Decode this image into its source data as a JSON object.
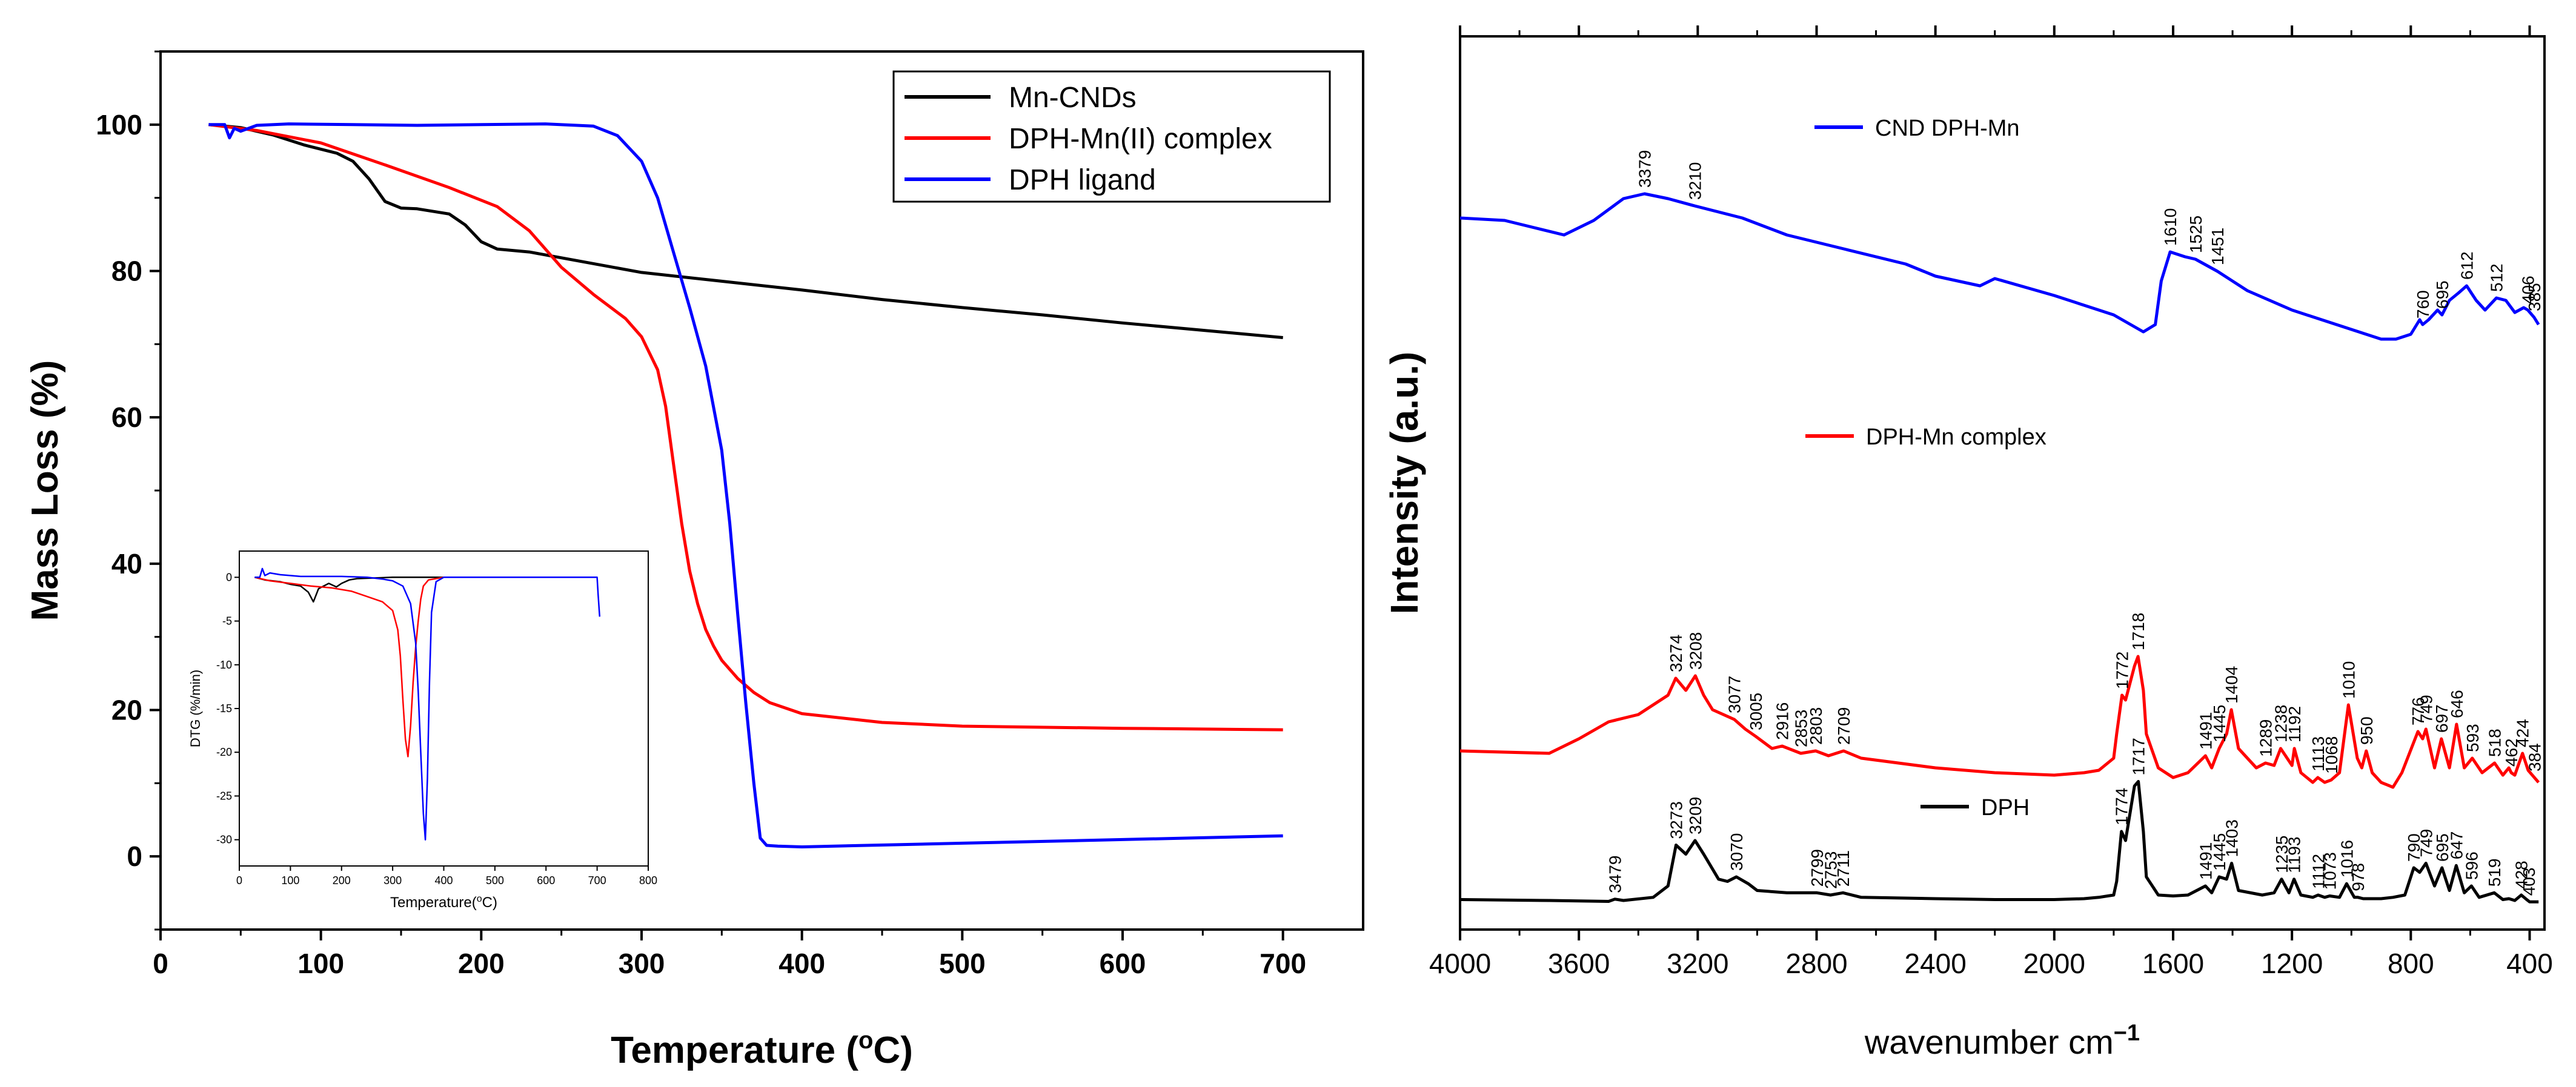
{
  "chart_data": [
    {
      "type": "line",
      "title": "",
      "xlabel": "Temperature (",
      "xlabel_sup": "o",
      "xlabel_end": "C)",
      "ylabel": "Mass Loss (%)",
      "xlim": [
        0,
        750
      ],
      "ylim": [
        -10,
        110
      ],
      "xticks": [
        0,
        100,
        200,
        300,
        400,
        500,
        600,
        700
      ],
      "yticks": [
        0,
        20,
        40,
        60,
        80,
        100
      ],
      "series": [
        {
          "name": "Mn-CNDs",
          "color": "#000000",
          "x": [
            30,
            50,
            70,
            90,
            110,
            120,
            130,
            140,
            150,
            160,
            180,
            190,
            200,
            210,
            230,
            260,
            300,
            350,
            400,
            450,
            500,
            550,
            600,
            650,
            700
          ],
          "y": [
            100,
            99.6,
            98.6,
            97.2,
            96.1,
            95.0,
            92.6,
            89.5,
            88.6,
            88.5,
            87.8,
            86.3,
            84.0,
            83.0,
            82.6,
            81.4,
            79.8,
            78.6,
            77.4,
            76.1,
            75.0,
            74.0,
            72.9,
            71.9,
            70.9
          ]
        },
        {
          "name": "DPH-Mn(II) complex",
          "color": "#ff0000",
          "x": [
            30,
            60,
            100,
            140,
            180,
            210,
            230,
            250,
            270,
            290,
            300,
            310,
            315,
            320,
            325,
            330,
            335,
            340,
            345,
            350,
            360,
            370,
            380,
            400,
            450,
            500,
            600,
            700
          ],
          "y": [
            100,
            99.2,
            97.5,
            94.5,
            91.4,
            88.8,
            85.5,
            80.5,
            76.8,
            73.5,
            71.0,
            66.5,
            61.5,
            53.5,
            45.5,
            39.0,
            34.5,
            31.0,
            28.7,
            26.8,
            24.3,
            22.4,
            21.0,
            19.5,
            18.3,
            17.8,
            17.5,
            17.3
          ]
        },
        {
          "name": "DPH ligand",
          "color": "#0000ff",
          "x": [
            30,
            40,
            43,
            46,
            50,
            60,
            80,
            120,
            160,
            200,
            240,
            270,
            285,
            300,
            310,
            320,
            330,
            340,
            350,
            355,
            360,
            365,
            370,
            374,
            378,
            385,
            400,
            500,
            600,
            700
          ],
          "y": [
            100,
            100,
            98.2,
            99.5,
            99.1,
            99.9,
            100.1,
            100,
            99.9,
            100,
            100.1,
            99.8,
            98.5,
            95.0,
            90.0,
            82.5,
            75.0,
            67.0,
            55.5,
            45.5,
            33.0,
            21.0,
            10.0,
            2.5,
            1.5,
            1.4,
            1.3,
            1.8,
            2.3,
            2.8
          ]
        }
      ],
      "legend": {
        "placement": "top-right",
        "labels": [
          "Mn-CNDs",
          "DPH-Mn(II) complex",
          "DPH ligand"
        ]
      }
    },
    {
      "type": "line",
      "title": "",
      "xlabel": "Temperature(",
      "xlabel_sup": "o",
      "xlabel_end": "C)",
      "ylabel": "DTG (%/min)",
      "xlim": [
        0,
        800
      ],
      "ylim": [
        -33,
        3
      ],
      "xticks": [
        0,
        100,
        200,
        300,
        400,
        500,
        600,
        700,
        800
      ],
      "yticks": [
        0,
        -5,
        -10,
        -15,
        -20,
        -25,
        -30
      ],
      "series": [
        {
          "name": "Mn-CNDs",
          "color": "#000000",
          "x": [
            30,
            50,
            80,
            100,
            120,
            135,
            145,
            155,
            175,
            190,
            200,
            215,
            230,
            300,
            400,
            500,
            600,
            700
          ],
          "y": [
            0,
            -0.3,
            -0.5,
            -0.8,
            -1.0,
            -1.7,
            -2.8,
            -1.3,
            -0.7,
            -1.1,
            -0.7,
            -0.3,
            -0.15,
            0,
            0,
            0,
            0,
            0
          ]
        },
        {
          "name": "DPH-Mn(II) complex",
          "color": "#ff0000",
          "x": [
            30,
            60,
            100,
            140,
            180,
            220,
            250,
            280,
            300,
            310,
            315,
            320,
            325,
            330,
            335,
            340,
            345,
            350,
            355,
            360,
            370,
            400,
            500,
            600,
            700
          ],
          "y": [
            0,
            -0.4,
            -0.7,
            -1.0,
            -1.2,
            -1.6,
            -2.2,
            -2.8,
            -3.8,
            -6.0,
            -9.0,
            -14.0,
            -18.5,
            -20.5,
            -17.0,
            -12.0,
            -8.0,
            -5.0,
            -2.5,
            -1.0,
            -0.3,
            0,
            0,
            0,
            0
          ]
        },
        {
          "name": "DPH ligand",
          "color": "#0000ff",
          "x": [
            30,
            40,
            45,
            50,
            60,
            80,
            120,
            200,
            250,
            280,
            300,
            320,
            335,
            345,
            350,
            355,
            360,
            364,
            368,
            372,
            376,
            385,
            400,
            500,
            600,
            700,
            702,
            705
          ],
          "y": [
            0,
            0,
            1.0,
            0.2,
            0.5,
            0.3,
            0.1,
            0.1,
            0,
            -0.2,
            -0.4,
            -1.0,
            -3.0,
            -7.5,
            -13.0,
            -20.0,
            -27.0,
            -30.0,
            -23.0,
            -12.0,
            -4.0,
            -0.5,
            0,
            0,
            0,
            0,
            -2.0,
            -4.5
          ]
        }
      ]
    },
    {
      "type": "line",
      "title": "",
      "xlabel": "wavenumber cm",
      "xlabel_sup": "−1",
      "ylabel": "Intensity (a.u.)",
      "xlim": [
        4000,
        350
      ],
      "xticks": [
        4000,
        3600,
        3200,
        2800,
        2400,
        2000,
        1600,
        1200,
        800,
        400
      ],
      "series": [
        {
          "name": "CND DPH-Mn",
          "color": "#0000ff",
          "x": [
            4000,
            3850,
            3750,
            3650,
            3550,
            3450,
            3379,
            3300,
            3210,
            3050,
            2900,
            2700,
            2500,
            2400,
            2250,
            2200,
            2000,
            1800,
            1700,
            1660,
            1640,
            1610,
            1560,
            1525,
            1451,
            1350,
            1200,
            1000,
            900,
            850,
            800,
            770,
            760,
            740,
            710,
            695,
            670,
            640,
            612,
            580,
            550,
            512,
            480,
            450,
            420,
            406,
            385,
            370
          ],
          "y": [
            95,
            94.5,
            93,
            91.5,
            94.5,
            99,
            100,
            99,
            97.5,
            95,
            91.5,
            88.5,
            85.5,
            83,
            81,
            82.5,
            79,
            75,
            71.5,
            73,
            82,
            88,
            87,
            86.5,
            84,
            80,
            76,
            72,
            70,
            70,
            71,
            74,
            73,
            74,
            76,
            75,
            78,
            79.5,
            81,
            78,
            76,
            78.5,
            78,
            75.5,
            76.5,
            76,
            74.5,
            73
          ]
        },
        {
          "name": "DPH-Mn complex",
          "color": "#ff0000",
          "x": [
            4000,
            3700,
            3600,
            3500,
            3400,
            3300,
            3274,
            3240,
            3208,
            3180,
            3150,
            3077,
            3040,
            3005,
            2950,
            2916,
            2853,
            2803,
            2760,
            2709,
            2650,
            2400,
            2200,
            2000,
            1900,
            1850,
            1800,
            1790,
            1772,
            1760,
            1730,
            1718,
            1700,
            1690,
            1650,
            1600,
            1550,
            1491,
            1470,
            1445,
            1420,
            1404,
            1380,
            1320,
            1289,
            1260,
            1238,
            1200,
            1192,
            1170,
            1130,
            1113,
            1090,
            1068,
            1040,
            1010,
            980,
            965,
            950,
            930,
            900,
            860,
            830,
            776,
            760,
            749,
            720,
            697,
            670,
            646,
            620,
            593,
            560,
            518,
            490,
            470,
            462,
            450,
            424,
            405,
            384,
            370
          ],
          "y": [
            41.5,
            41,
            44,
            47.5,
            49,
            53,
            56.5,
            54,
            57,
            53,
            50,
            48,
            46,
            44.5,
            42,
            42.5,
            41,
            41.5,
            40.5,
            41.5,
            40,
            38,
            37,
            36.5,
            37,
            37.5,
            40,
            45,
            53,
            52,
            59,
            61,
            54,
            45,
            38,
            36,
            37,
            40.5,
            38,
            42,
            45,
            50,
            42,
            38,
            39,
            38.5,
            42,
            38.5,
            42,
            37,
            35,
            36,
            35,
            35.5,
            37,
            51,
            40,
            38,
            41.5,
            37,
            35,
            34,
            37,
            45.5,
            44,
            46,
            38,
            44,
            38,
            47,
            38,
            40,
            37,
            39,
            36.5,
            38,
            37,
            36.5,
            41,
            37.5,
            36,
            35
          ]
        },
        {
          "name": "DPH",
          "color": "#000000",
          "x": [
            4000,
            3700,
            3500,
            3479,
            3450,
            3350,
            3300,
            3273,
            3240,
            3209,
            3180,
            3130,
            3100,
            3070,
            3030,
            3000,
            2900,
            2799,
            2753,
            2711,
            2650,
            2400,
            2200,
            2000,
            1900,
            1850,
            1800,
            1790,
            1774,
            1760,
            1730,
            1717,
            1700,
            1690,
            1650,
            1600,
            1550,
            1491,
            1470,
            1445,
            1420,
            1403,
            1380,
            1300,
            1260,
            1235,
            1210,
            1193,
            1170,
            1130,
            1112,
            1090,
            1073,
            1040,
            1016,
            990,
            978,
            960,
            900,
            860,
            820,
            790,
            770,
            749,
            720,
            695,
            670,
            647,
            620,
            596,
            570,
            519,
            490,
            470,
            450,
            428,
            410,
            400,
            370
          ],
          "y": [
            1,
            0.8,
            0.6,
            1.1,
            0.8,
            1.5,
            4,
            13,
            11,
            14,
            11,
            5.5,
            5,
            6,
            4.5,
            3,
            2.5,
            2.5,
            2,
            2.5,
            1.5,
            1.2,
            1,
            1,
            1.2,
            1.5,
            2,
            5,
            16,
            14,
            26,
            27,
            16,
            6,
            2,
            1.8,
            2,
            4,
            2.5,
            6,
            5.5,
            9,
            3,
            2,
            2.5,
            5.5,
            2.5,
            5.5,
            2,
            1.5,
            2,
            1.5,
            1.8,
            1.5,
            4.5,
            1.5,
            1.5,
            1.2,
            1.2,
            1.5,
            2,
            8,
            7,
            9,
            4,
            8,
            3,
            8.5,
            2.5,
            4,
            1.5,
            2.5,
            1,
            1.2,
            0.8,
            2,
            1,
            0.5,
            0.5
          ]
        }
      ],
      "legend": {
        "labels": [
          "CND DPH-Mn",
          "DPH-Mn complex",
          "DPH"
        ]
      },
      "annotations": {
        "CND DPH-Mn": [
          "3379",
          "3210",
          "1610",
          "1525",
          "1451",
          "760",
          "695",
          "612",
          "512",
          "406",
          "385"
        ],
        "DPH-Mn complex": [
          "3274",
          "3208",
          "3077",
          "3005",
          "2916",
          "2853",
          "2803",
          "2709",
          "1772",
          "1718",
          "1491",
          "1445",
          "1404",
          "1289",
          "1238",
          "1192",
          "1113",
          "1068",
          "1010",
          "950",
          "776",
          "749",
          "697",
          "646",
          "593",
          "518",
          "462",
          "424",
          "384"
        ],
        "DPH": [
          "3479",
          "3273",
          "3209",
          "3070",
          "2799",
          "2753",
          "2711",
          "1774",
          "1717",
          "1491",
          "1445",
          "1403",
          "1235",
          "1193",
          "1112",
          "1073",
          "1016",
          "978",
          "790",
          "749",
          "695",
          "647",
          "596",
          "519",
          "428",
          "403"
        ]
      }
    }
  ]
}
